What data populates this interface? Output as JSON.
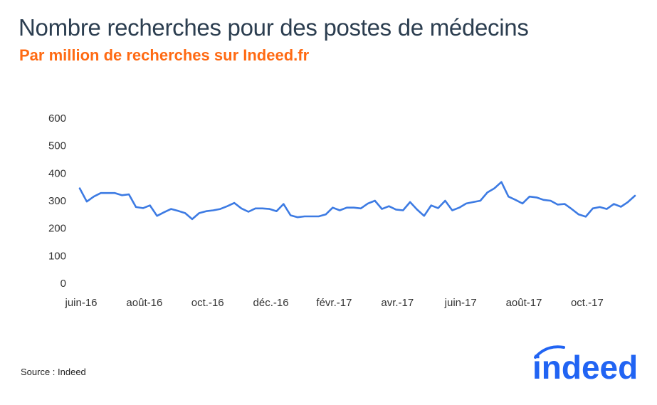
{
  "header": {
    "title": "Nombre recherches pour des postes de médecins",
    "subtitle": "Par million de recherches sur Indeed.fr"
  },
  "footer": {
    "source": "Source : Indeed",
    "logo_text": "indeed"
  },
  "colors": {
    "title": "#2c3e50",
    "subtitle": "#ff6a13",
    "line": "#3d7be3",
    "logo": "#2164f3"
  },
  "chart_data": {
    "type": "line",
    "title": "Nombre recherches pour des postes de médecins",
    "subtitle": "Par million de recherches sur Indeed.fr",
    "xlabel": "",
    "ylabel": "",
    "ylim": [
      0,
      600
    ],
    "yticks": [
      0,
      100,
      200,
      300,
      400,
      500,
      600
    ],
    "grid": false,
    "legend": "none",
    "x_tick_labels": [
      "juin-16",
      "août-16",
      "oct.-16",
      "déc.-16",
      "févr.-17",
      "avr.-17",
      "juin-17",
      "août-17",
      "oct.-17"
    ],
    "x_tick_week_index": [
      0,
      9,
      18,
      27,
      36,
      45,
      54,
      63,
      72
    ],
    "series": [
      {
        "name": "",
        "values": [
          345,
          297,
          315,
          328,
          328,
          328,
          320,
          323,
          277,
          273,
          283,
          245,
          258,
          270,
          263,
          255,
          233,
          255,
          262,
          265,
          270,
          280,
          292,
          272,
          260,
          272,
          272,
          270,
          262,
          288,
          247,
          240,
          243,
          243,
          243,
          250,
          275,
          265,
          275,
          275,
          272,
          290,
          300,
          270,
          280,
          268,
          265,
          295,
          268,
          245,
          283,
          273,
          300,
          265,
          275,
          290,
          295,
          300,
          330,
          345,
          368,
          315,
          303,
          290,
          315,
          312,
          303,
          300,
          286,
          288,
          270,
          250,
          242,
          272,
          277,
          270,
          288,
          278,
          295,
          318
        ]
      }
    ]
  }
}
